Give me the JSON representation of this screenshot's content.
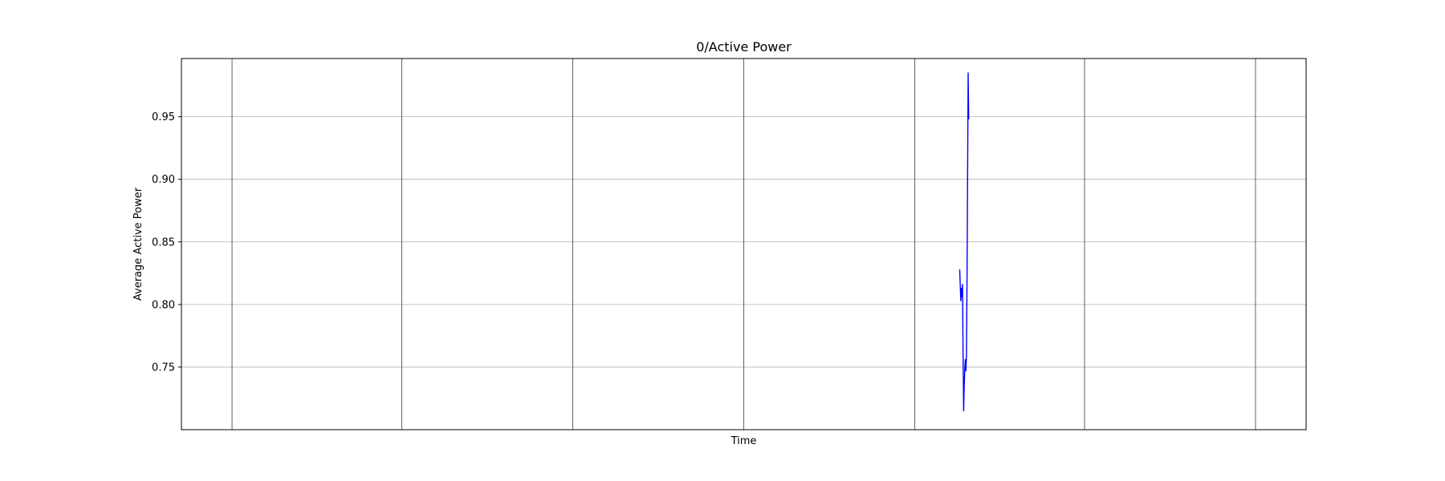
{
  "chart_data": {
    "type": "line",
    "title": "0/Active Power",
    "xlabel": "Time",
    "ylabel": "Average Active Power",
    "xlim": [
      0,
      1
    ],
    "ylim": [
      0.7,
      0.9965
    ],
    "yticks": [
      0.75,
      0.8,
      0.85,
      0.9,
      0.95
    ],
    "ytick_labels": [
      "0.75",
      "0.80",
      "0.85",
      "0.90",
      "0.95"
    ],
    "x_gridlines": [
      0.045,
      0.196,
      0.348,
      0.5,
      0.652,
      0.803,
      0.955
    ],
    "grid": true,
    "legend": "none",
    "series": [
      {
        "color": "#0000ff",
        "x": [
          0.692,
          0.6925,
          0.693,
          0.6935,
          0.694,
          0.6945,
          0.695,
          0.6955,
          0.696,
          0.6965,
          0.697,
          0.6975,
          0.698,
          0.6985,
          0.699,
          0.6995,
          0.7
        ],
        "y": [
          0.828,
          0.815,
          0.803,
          0.813,
          0.806,
          0.816,
          0.76,
          0.715,
          0.735,
          0.748,
          0.756,
          0.747,
          0.76,
          0.82,
          0.9,
          0.985,
          0.948
        ]
      }
    ]
  }
}
